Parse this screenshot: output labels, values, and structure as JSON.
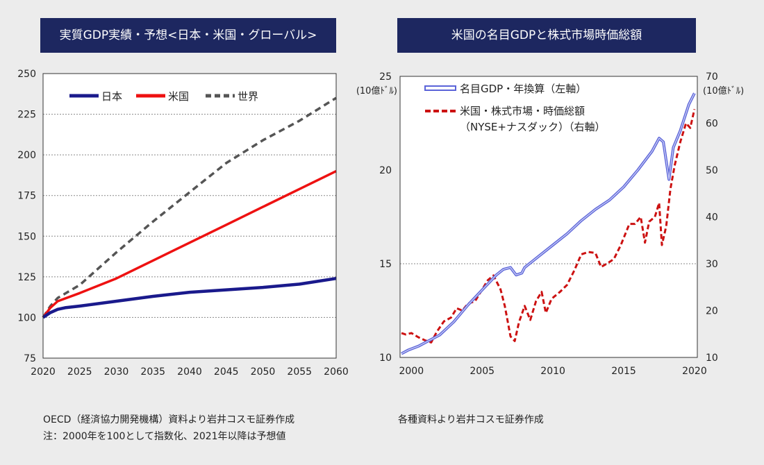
{
  "left": {
    "title": "実質GDP実績・予想<日本・米国・グローバル>",
    "note_line1": "OECD（経済協力開発機構）資料より岩井コスモ証券作成",
    "note_line2": "注：2000年を100として指数化、2021年以降は予想値"
  },
  "right": {
    "title": "米国の名目GDPと株式市場時価総額",
    "note": "各種資料より岩井コスモ証券作成"
  },
  "chart_data": [
    {
      "type": "line",
      "title": "実質GDP実績・予想<日本・米国・グローバル>",
      "xlim": [
        2020,
        2060
      ],
      "ylim": [
        75,
        250
      ],
      "x_ticks": [
        2020,
        2025,
        2030,
        2035,
        2040,
        2045,
        2050,
        2055,
        2060
      ],
      "y_ticks": [
        75,
        100,
        125,
        150,
        175,
        200,
        225,
        250
      ],
      "grid": "horizontal dotted",
      "legend_position": "top-left",
      "colors": {
        "japan": "#1a1a8c",
        "us": "#ee1111",
        "world": "#555555"
      },
      "series": [
        {
          "name": "日本",
          "style": "solid",
          "points": [
            [
              2020,
              100
            ],
            [
              2021,
              103
            ],
            [
              2022,
              105
            ],
            [
              2023,
              106
            ],
            [
              2025,
              107
            ],
            [
              2030,
              110
            ],
            [
              2035,
              113
            ],
            [
              2040,
              115.5
            ],
            [
              2045,
              117
            ],
            [
              2050,
              118.5
            ],
            [
              2055,
              120.5
            ],
            [
              2060,
              124
            ]
          ]
        },
        {
          "name": "米国",
          "style": "solid",
          "points": [
            [
              2020,
              100
            ],
            [
              2021,
              106
            ],
            [
              2022,
              110
            ],
            [
              2025,
              115
            ],
            [
              2030,
              124
            ],
            [
              2035,
              135
            ],
            [
              2040,
              146
            ],
            [
              2045,
              157
            ],
            [
              2050,
              168
            ],
            [
              2055,
              179
            ],
            [
              2060,
              190
            ]
          ]
        },
        {
          "name": "世界",
          "style": "dashed",
          "points": [
            [
              2020,
              100
            ],
            [
              2021,
              107
            ],
            [
              2022,
              112
            ],
            [
              2025,
              120
            ],
            [
              2030,
              140
            ],
            [
              2035,
              159
            ],
            [
              2040,
              177
            ],
            [
              2045,
              195
            ],
            [
              2050,
              209
            ],
            [
              2055,
              221
            ],
            [
              2060,
              235
            ]
          ]
        }
      ]
    },
    {
      "type": "line",
      "title": "米国の名目GDPと株式市場時価総額",
      "xlim": [
        1999.2,
        2020.2
      ],
      "x_ticks": [
        2000,
        2005,
        2010,
        2015,
        2020
      ],
      "y_left": {
        "lim": [
          10,
          25
        ],
        "ticks": [
          10,
          15,
          20,
          25
        ],
        "unit": "(10億ﾄﾞﾙ)"
      },
      "y_right": {
        "lim": [
          10,
          70
        ],
        "ticks": [
          10,
          20,
          30,
          40,
          50,
          60,
          70
        ],
        "unit": "(10億ﾄﾞﾙ)"
      },
      "grid": "one horizontal dotted line at 15",
      "legend_position": "top-left",
      "colors": {
        "gdp": "#5a63d8",
        "market": "#cc1111"
      },
      "series": [
        {
          "name": "名目GDP・年換算（左軸）",
          "axis": "left",
          "style": "double-line",
          "points": [
            [
              1999.3,
              10.2
            ],
            [
              1999.8,
              10.4
            ],
            [
              2000.5,
              10.6
            ],
            [
              2001,
              10.8
            ],
            [
              2002,
              11.2
            ],
            [
              2003,
              11.9
            ],
            [
              2004,
              12.8
            ],
            [
              2005,
              13.6
            ],
            [
              2006,
              14.4
            ],
            [
              2006.5,
              14.7
            ],
            [
              2007,
              14.8
            ],
            [
              2007.4,
              14.4
            ],
            [
              2007.8,
              14.5
            ],
            [
              2008,
              14.8
            ],
            [
              2009,
              15.4
            ],
            [
              2010,
              16.0
            ],
            [
              2011,
              16.6
            ],
            [
              2012,
              17.3
            ],
            [
              2013,
              17.9
            ],
            [
              2014,
              18.4
            ],
            [
              2015,
              19.1
            ],
            [
              2016,
              20.0
            ],
            [
              2017,
              21.0
            ],
            [
              2017.5,
              21.7
            ],
            [
              2017.8,
              21.5
            ],
            [
              2018.2,
              19.5
            ],
            [
              2018.5,
              21.2
            ],
            [
              2019,
              22.1
            ],
            [
              2019.6,
              23.5
            ],
            [
              2020,
              24.1
            ]
          ]
        },
        {
          "name": "米国・株式市場・時価総額\n（NYSE+ナスダック）（右軸）",
          "axis": "right",
          "style": "dashed",
          "points": [
            [
              1999.3,
              15.2
            ],
            [
              1999.6,
              14.9
            ],
            [
              2000,
              15.2
            ],
            [
              2000.5,
              14.3
            ],
            [
              2001,
              13.6
            ],
            [
              2001.4,
              13.2
            ],
            [
              2001.8,
              15.5
            ],
            [
              2002.3,
              17.7
            ],
            [
              2002.8,
              18.5
            ],
            [
              2003.2,
              20.5
            ],
            [
              2003.6,
              20.0
            ],
            [
              2004,
              21.5
            ],
            [
              2004.5,
              22.0
            ],
            [
              2005,
              24.5
            ],
            [
              2005.4,
              26.5
            ],
            [
              2005.8,
              27.5
            ],
            [
              2006.3,
              24.5
            ],
            [
              2006.6,
              21.0
            ],
            [
              2007,
              14.5
            ],
            [
              2007.3,
              13.5
            ],
            [
              2007.6,
              17.5
            ],
            [
              2008,
              21.0
            ],
            [
              2008.4,
              18.0
            ],
            [
              2008.8,
              22.0
            ],
            [
              2009.2,
              24.0
            ],
            [
              2009.5,
              19.5
            ],
            [
              2009.9,
              22.5
            ],
            [
              2010.5,
              24.0
            ],
            [
              2011,
              25.5
            ],
            [
              2011.5,
              28.5
            ],
            [
              2012,
              32.0
            ],
            [
              2012.5,
              32.5
            ],
            [
              2013,
              32.3
            ],
            [
              2013.4,
              29.3
            ],
            [
              2013.8,
              30.0
            ],
            [
              2014.3,
              31.0
            ],
            [
              2014.8,
              34.0
            ],
            [
              2015.4,
              38.5
            ],
            [
              2015.8,
              38.5
            ],
            [
              2016.2,
              40.0
            ],
            [
              2016.5,
              34.5
            ],
            [
              2016.8,
              39.0
            ],
            [
              2017.2,
              40.0
            ],
            [
              2017.5,
              43.0
            ],
            [
              2017.7,
              34.0
            ],
            [
              2018,
              38.0
            ],
            [
              2018.3,
              46.0
            ],
            [
              2018.6,
              51.0
            ],
            [
              2019,
              56.0
            ],
            [
              2019.4,
              60.0
            ],
            [
              2019.7,
              59.0
            ],
            [
              2020,
              63.0
            ]
          ]
        }
      ]
    }
  ]
}
